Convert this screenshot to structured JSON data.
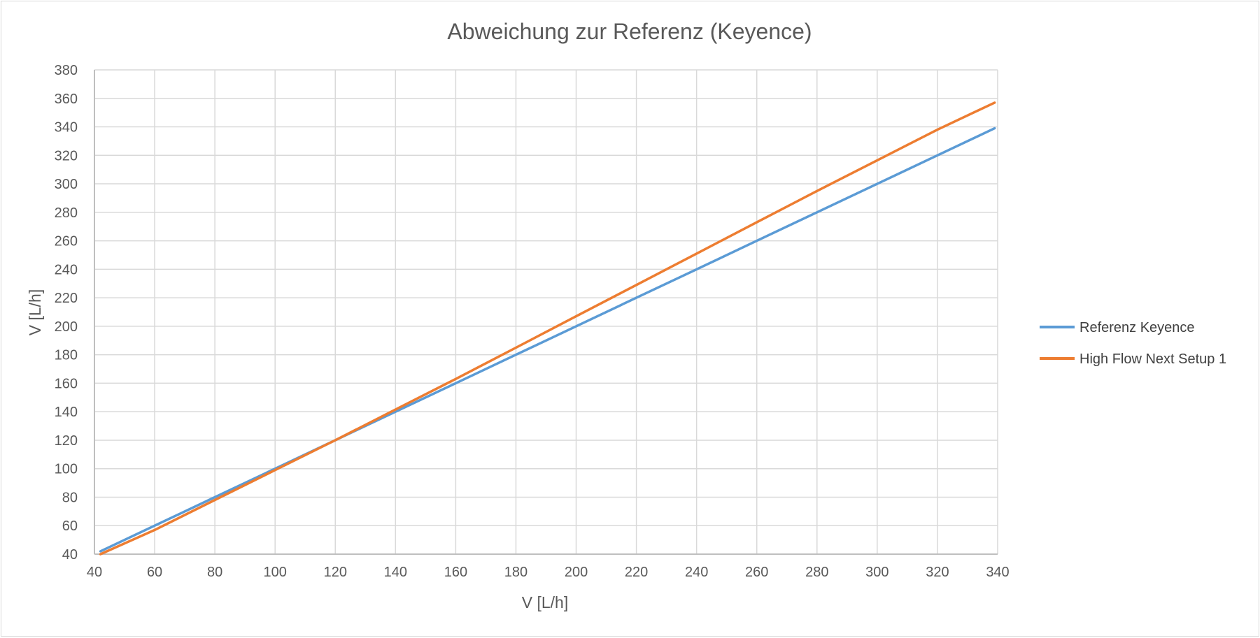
{
  "chart_data": {
    "type": "line",
    "title": "Abweichung zur Referenz (Keyence)",
    "xlabel": "V [L/h]",
    "ylabel": "V [L/h]",
    "xlim": [
      40,
      340
    ],
    "ylim": [
      40,
      380
    ],
    "xticks": [
      40,
      60,
      80,
      100,
      120,
      140,
      160,
      180,
      200,
      220,
      240,
      260,
      280,
      300,
      320,
      340
    ],
    "yticks": [
      40,
      60,
      80,
      100,
      120,
      140,
      160,
      180,
      200,
      220,
      240,
      260,
      280,
      300,
      320,
      340,
      360,
      380
    ],
    "grid": true,
    "legend_position": "right",
    "series": [
      {
        "name": "Referenz Keyence",
        "color": "#5B9BD5",
        "x": [
          42,
          60,
          80,
          100,
          120,
          140,
          160,
          180,
          200,
          220,
          240,
          260,
          280,
          300,
          320,
          339
        ],
        "y": [
          42,
          60,
          80,
          100,
          120,
          140,
          160,
          180,
          200,
          220,
          240,
          260,
          280,
          300,
          320,
          339
        ]
      },
      {
        "name": "High Flow Next Setup 1",
        "color": "#ED7D31",
        "x": [
          42,
          60,
          80,
          100,
          120,
          140,
          160,
          180,
          200,
          220,
          240,
          260,
          280,
          300,
          320,
          339
        ],
        "y": [
          40,
          57,
          78,
          99,
          120,
          141.5,
          163,
          185,
          207,
          229,
          251,
          273,
          295,
          316.5,
          338,
          357
        ]
      }
    ]
  }
}
